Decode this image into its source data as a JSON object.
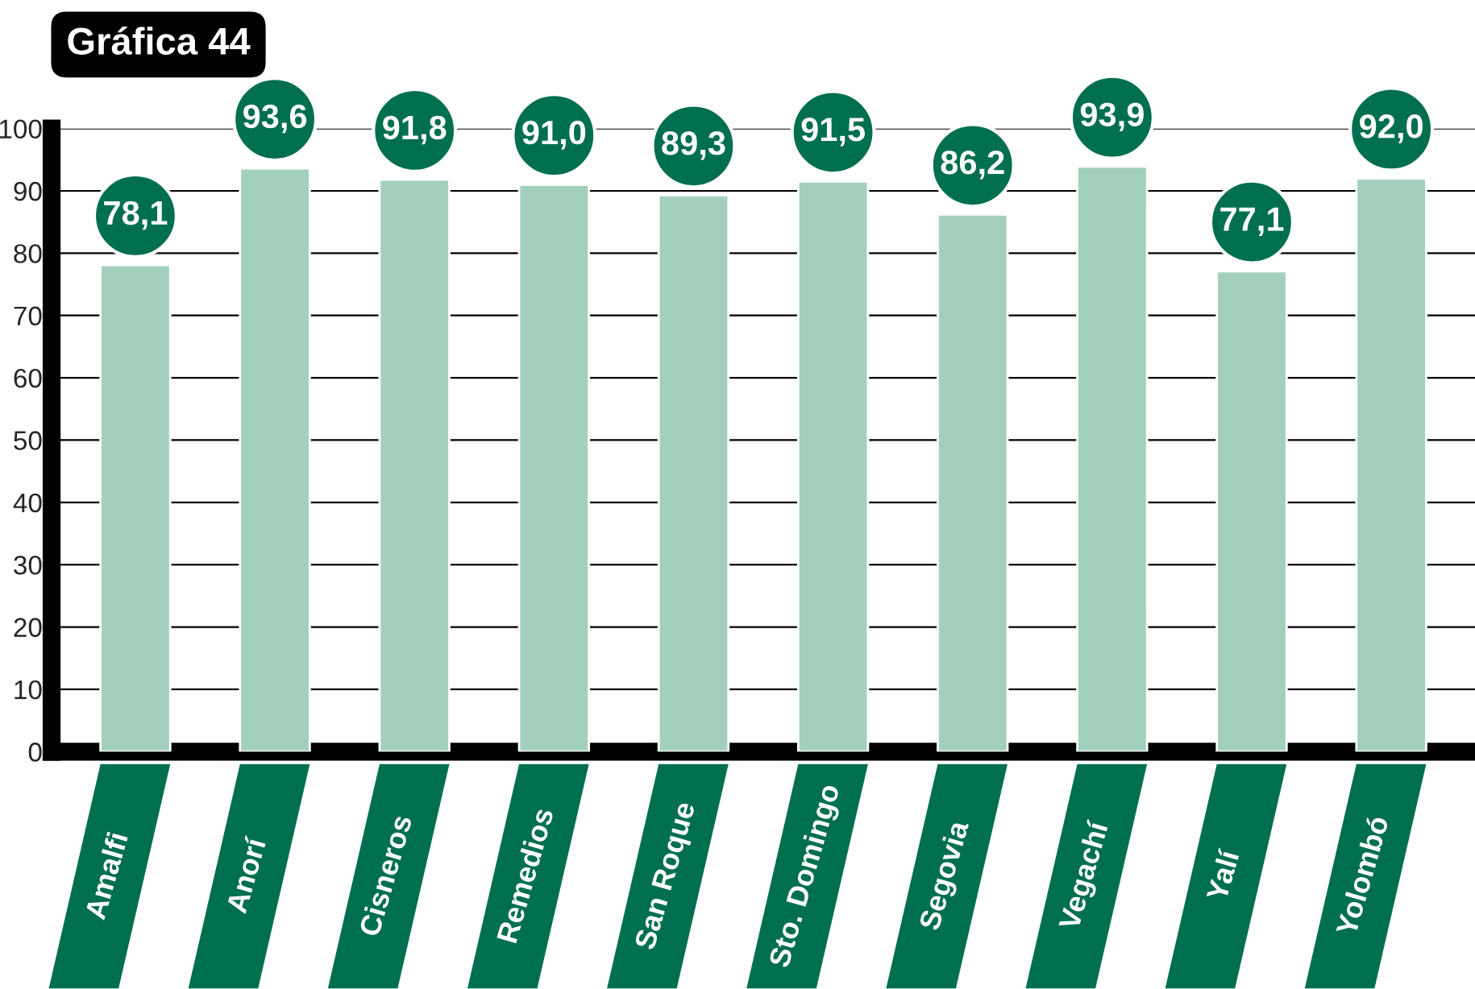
{
  "chart_data": {
    "type": "bar",
    "title": "Gráfica 44",
    "categories": [
      "Amalfi",
      "Anorí",
      "Cisneros",
      "Remedios",
      "San Roque",
      "Sto. Domingo",
      "Segovia",
      "Vegachí",
      "Yalí",
      "Yolombó"
    ],
    "values": [
      78.1,
      93.6,
      91.8,
      91.0,
      89.3,
      91.5,
      86.2,
      93.9,
      77.1,
      92.0
    ],
    "value_labels": [
      "78,1",
      "93,6",
      "91,8",
      "91,0",
      "89,3",
      "91,5",
      "86,2",
      "93,9",
      "77,1",
      "92,0"
    ],
    "color": "#a3d0bc",
    "ylim": [
      0,
      100
    ],
    "yticks": [
      0,
      10,
      20,
      30,
      40,
      50,
      60,
      70,
      80,
      90,
      100
    ],
    "grid": "y"
  }
}
